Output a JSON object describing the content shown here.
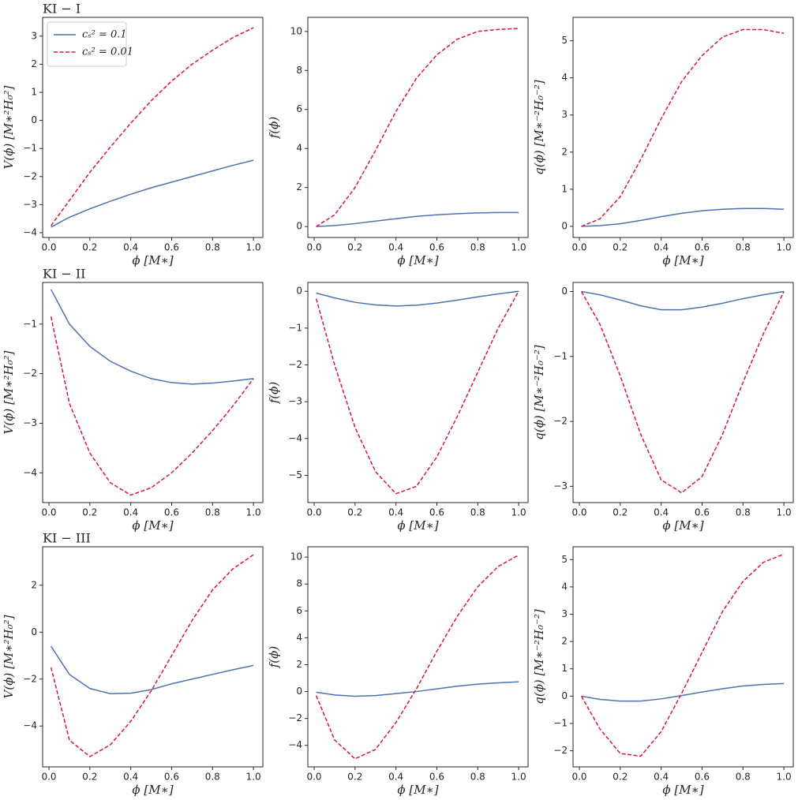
{
  "chart_data": [
    {
      "type": "line",
      "title": "KI − I",
      "xlabel": "ϕ [M∗]",
      "ylabel": "V(ϕ) [M∗²H₀²]",
      "legend": "upper left",
      "x": [
        0.01,
        0.1,
        0.2,
        0.3,
        0.4,
        0.5,
        0.6,
        0.7,
        0.8,
        0.9,
        1.0
      ],
      "xlim": [
        -0.031,
        1.046
      ],
      "xticks": [
        {
          "value": 0,
          "label": "0.0"
        },
        0.2,
        0.4,
        0.6,
        0.8,
        {
          "value": 1,
          "label": "1.0"
        }
      ],
      "ylim": [
        -4.17,
        3.67
      ],
      "yticks": [
        {
          "value": -4,
          "label": "−4"
        },
        {
          "value": -3,
          "label": "−3"
        },
        {
          "value": -2,
          "label": "−2"
        },
        {
          "value": -1,
          "label": "−1"
        },
        0,
        1,
        2,
        3
      ],
      "series": [
        {
          "name": "cₛ² = 0.1",
          "color": "#4c72b0",
          "linestyle": "solid",
          "values": [
            -3.8,
            -3.45,
            -3.15,
            -2.88,
            -2.63,
            -2.4,
            -2.2,
            -2.0,
            -1.8,
            -1.6,
            -1.42
          ]
        },
        {
          "name": "cₛ² = 0.01",
          "color": "#dc143c",
          "linestyle": "dashed",
          "values": [
            -3.75,
            -2.85,
            -1.85,
            -0.95,
            -0.1,
            0.7,
            1.4,
            2.0,
            2.5,
            2.95,
            3.3
          ]
        }
      ]
    },
    {
      "type": "line",
      "xlabel": "ϕ [M∗]",
      "ylabel": "f(ϕ)",
      "x": [
        0.01,
        0.1,
        0.2,
        0.3,
        0.4,
        0.5,
        0.6,
        0.7,
        0.8,
        0.9,
        1.0
      ],
      "xlim": [
        -0.031,
        1.046
      ],
      "xticks": [
        {
          "value": 0,
          "label": "0.0"
        },
        0.2,
        0.4,
        0.6,
        0.8,
        {
          "value": 1,
          "label": "1.0"
        }
      ],
      "ylim": [
        -0.56,
        10.72
      ],
      "yticks": [
        0,
        2,
        4,
        6,
        8,
        10
      ],
      "series": [
        {
          "color": "#4c72b0",
          "linestyle": "solid",
          "values": [
            0,
            0.05,
            0.15,
            0.28,
            0.4,
            0.52,
            0.6,
            0.66,
            0.7,
            0.72,
            0.72
          ]
        },
        {
          "color": "#dc143c",
          "linestyle": "dashed",
          "values": [
            0,
            0.6,
            2.0,
            3.9,
            5.9,
            7.6,
            8.8,
            9.6,
            10.0,
            10.1,
            10.15
          ]
        }
      ]
    },
    {
      "type": "line",
      "xlabel": "ϕ [M∗]",
      "ylabel": "q(ϕ) [M∗⁻²H₀⁻²]",
      "x": [
        0.01,
        0.1,
        0.2,
        0.3,
        0.4,
        0.5,
        0.6,
        0.7,
        0.8,
        0.9,
        1.0
      ],
      "xlim": [
        -0.031,
        1.046
      ],
      "xticks": [
        {
          "value": 0,
          "label": "0.0"
        },
        0.2,
        0.4,
        0.6,
        0.8,
        {
          "value": 1,
          "label": "1.0"
        }
      ],
      "ylim": [
        -0.3,
        5.63
      ],
      "yticks": [
        0,
        1,
        2,
        3,
        4,
        5
      ],
      "series": [
        {
          "color": "#4c72b0",
          "linestyle": "solid",
          "values": [
            0,
            0.02,
            0.07,
            0.16,
            0.26,
            0.35,
            0.42,
            0.46,
            0.48,
            0.48,
            0.46
          ]
        },
        {
          "color": "#dc143c",
          "linestyle": "dashed",
          "values": [
            0,
            0.2,
            0.8,
            1.8,
            2.9,
            3.9,
            4.6,
            5.1,
            5.3,
            5.3,
            5.2
          ]
        }
      ]
    },
    {
      "type": "line",
      "title": "KI − II",
      "xlabel": "ϕ [M∗]",
      "ylabel": "V(ϕ) [M∗²H₀²]",
      "x": [
        0.01,
        0.1,
        0.2,
        0.3,
        0.4,
        0.5,
        0.6,
        0.7,
        0.8,
        0.9,
        1.0
      ],
      "xlim": [
        -0.031,
        1.046
      ],
      "xticks": [
        {
          "value": 0,
          "label": "0.0"
        },
        0.2,
        0.4,
        0.6,
        0.8,
        {
          "value": 1,
          "label": "1.0"
        }
      ],
      "ylim": [
        -4.6,
        -0.16
      ],
      "yticks": [
        {
          "value": -4,
          "label": "−4"
        },
        {
          "value": -3,
          "label": "−3"
        },
        {
          "value": -2,
          "label": "−2"
        },
        {
          "value": -1,
          "label": "−1"
        }
      ],
      "series": [
        {
          "color": "#4c72b0",
          "linestyle": "solid",
          "values": [
            -0.3,
            -1.0,
            -1.45,
            -1.75,
            -1.95,
            -2.1,
            -2.18,
            -2.21,
            -2.19,
            -2.15,
            -2.1
          ]
        },
        {
          "color": "#dc143c",
          "linestyle": "dashed",
          "values": [
            -0.85,
            -2.6,
            -3.6,
            -4.2,
            -4.45,
            -4.3,
            -4.0,
            -3.6,
            -3.15,
            -2.65,
            -2.1
          ]
        }
      ]
    },
    {
      "type": "line",
      "xlabel": "ϕ [M∗]",
      "ylabel": "f(ϕ)",
      "x": [
        0.01,
        0.1,
        0.2,
        0.3,
        0.4,
        0.5,
        0.6,
        0.7,
        0.8,
        0.9,
        1.0
      ],
      "xlim": [
        -0.031,
        1.046
      ],
      "xticks": [
        {
          "value": 0,
          "label": "0.0"
        },
        0.2,
        0.4,
        0.6,
        0.8,
        {
          "value": 1,
          "label": "1.0"
        }
      ],
      "ylim": [
        -5.74,
        0.24
      ],
      "yticks": [
        {
          "value": -5,
          "label": "−5"
        },
        {
          "value": -4,
          "label": "−4"
        },
        {
          "value": -3,
          "label": "−3"
        },
        {
          "value": -2,
          "label": "−2"
        },
        {
          "value": -1,
          "label": "−1"
        },
        0
      ],
      "series": [
        {
          "color": "#4c72b0",
          "linestyle": "solid",
          "values": [
            -0.05,
            -0.18,
            -0.3,
            -0.37,
            -0.4,
            -0.38,
            -0.32,
            -0.24,
            -0.15,
            -0.07,
            0
          ]
        },
        {
          "color": "#dc143c",
          "linestyle": "dashed",
          "values": [
            -0.2,
            -2.0,
            -3.7,
            -4.9,
            -5.5,
            -5.3,
            -4.5,
            -3.4,
            -2.2,
            -1.0,
            0
          ]
        }
      ]
    },
    {
      "type": "line",
      "xlabel": "ϕ [M∗]",
      "ylabel": "q(ϕ) [M∗⁻²H₀⁻²]",
      "x": [
        0.01,
        0.1,
        0.2,
        0.3,
        0.4,
        0.5,
        0.6,
        0.7,
        0.8,
        0.9,
        1.0
      ],
      "xlim": [
        -0.031,
        1.046
      ],
      "xticks": [
        {
          "value": 0,
          "label": "0.0"
        },
        0.2,
        0.4,
        0.6,
        0.8,
        {
          "value": 1,
          "label": "1.0"
        }
      ],
      "ylim": [
        -3.25,
        0.14
      ],
      "yticks": [
        {
          "value": -3,
          "label": "−3"
        },
        {
          "value": -2,
          "label": "−2"
        },
        {
          "value": -1,
          "label": "−1"
        },
        0
      ],
      "series": [
        {
          "color": "#4c72b0",
          "linestyle": "solid",
          "values": [
            0,
            -0.05,
            -0.13,
            -0.22,
            -0.28,
            -0.28,
            -0.24,
            -0.18,
            -0.11,
            -0.05,
            0
          ]
        },
        {
          "color": "#dc143c",
          "linestyle": "dashed",
          "values": [
            0,
            -0.5,
            -1.3,
            -2.2,
            -2.9,
            -3.1,
            -2.85,
            -2.2,
            -1.4,
            -0.65,
            0
          ]
        }
      ]
    },
    {
      "type": "line",
      "title": "KI − III",
      "xlabel": "ϕ [M∗]",
      "ylabel": "V(ϕ) [M∗²H₀²]",
      "x": [
        0.01,
        0.1,
        0.2,
        0.3,
        0.4,
        0.5,
        0.6,
        0.7,
        0.8,
        0.9,
        1.0
      ],
      "xlim": [
        -0.031,
        1.046
      ],
      "xticks": [
        {
          "value": 0,
          "label": "0.0"
        },
        0.2,
        0.4,
        0.6,
        0.8,
        {
          "value": 1,
          "label": "1.0"
        }
      ],
      "ylim": [
        -5.74,
        3.64
      ],
      "yticks": [
        {
          "value": -4,
          "label": "−4"
        },
        {
          "value": -2,
          "label": "−2"
        },
        0,
        2
      ],
      "series": [
        {
          "color": "#4c72b0",
          "linestyle": "solid",
          "values": [
            -0.6,
            -1.8,
            -2.4,
            -2.62,
            -2.6,
            -2.45,
            -2.2,
            -2.0,
            -1.8,
            -1.6,
            -1.42
          ]
        },
        {
          "color": "#dc143c",
          "linestyle": "dashed",
          "values": [
            -1.5,
            -4.6,
            -5.3,
            -4.8,
            -3.8,
            -2.5,
            -1.0,
            0.5,
            1.8,
            2.7,
            3.3
          ]
        }
      ]
    },
    {
      "type": "line",
      "xlabel": "ϕ [M∗]",
      "ylabel": "f(ϕ)",
      "x": [
        0.01,
        0.1,
        0.2,
        0.3,
        0.4,
        0.5,
        0.6,
        0.7,
        0.8,
        0.9,
        1.0
      ],
      "xlim": [
        -0.031,
        1.046
      ],
      "xticks": [
        {
          "value": 0,
          "label": "0.0"
        },
        0.2,
        0.4,
        0.6,
        0.8,
        {
          "value": 1,
          "label": "1.0"
        }
      ],
      "ylim": [
        -5.6,
        10.77
      ],
      "yticks": [
        {
          "value": -4,
          "label": "−4"
        },
        {
          "value": -2,
          "label": "−2"
        },
        0,
        2,
        4,
        6,
        8,
        10
      ],
      "series": [
        {
          "color": "#4c72b0",
          "linestyle": "solid",
          "values": [
            -0.05,
            -0.25,
            -0.35,
            -0.3,
            -0.15,
            0,
            0.2,
            0.4,
            0.55,
            0.65,
            0.72
          ]
        },
        {
          "color": "#dc143c",
          "linestyle": "dashed",
          "values": [
            -0.3,
            -3.6,
            -5.0,
            -4.3,
            -2.3,
            0.2,
            3.0,
            5.6,
            7.8,
            9.3,
            10.15
          ]
        }
      ]
    },
    {
      "type": "line",
      "xlabel": "ϕ [M∗]",
      "ylabel": "q(ϕ) [M∗⁻²H₀⁻²]",
      "x": [
        0.01,
        0.1,
        0.2,
        0.3,
        0.4,
        0.5,
        0.6,
        0.7,
        0.8,
        0.9,
        1.0
      ],
      "xlim": [
        -0.031,
        1.046
      ],
      "xticks": [
        {
          "value": 0,
          "label": "0.0"
        },
        0.2,
        0.4,
        0.6,
        0.8,
        {
          "value": 1,
          "label": "1.0"
        }
      ],
      "ylim": [
        -2.59,
        5.47
      ],
      "yticks": [
        {
          "value": -2,
          "label": "−2"
        },
        {
          "value": -1,
          "label": "−1"
        },
        0,
        1,
        2,
        3,
        4,
        5
      ],
      "series": [
        {
          "color": "#4c72b0",
          "linestyle": "solid",
          "values": [
            0,
            -0.12,
            -0.18,
            -0.18,
            -0.1,
            0.02,
            0.15,
            0.27,
            0.37,
            0.43,
            0.46
          ]
        },
        {
          "color": "#dc143c",
          "linestyle": "dashed",
          "values": [
            0,
            -1.2,
            -2.1,
            -2.2,
            -1.3,
            0.1,
            1.6,
            3.1,
            4.2,
            4.9,
            5.2
          ]
        }
      ]
    }
  ]
}
